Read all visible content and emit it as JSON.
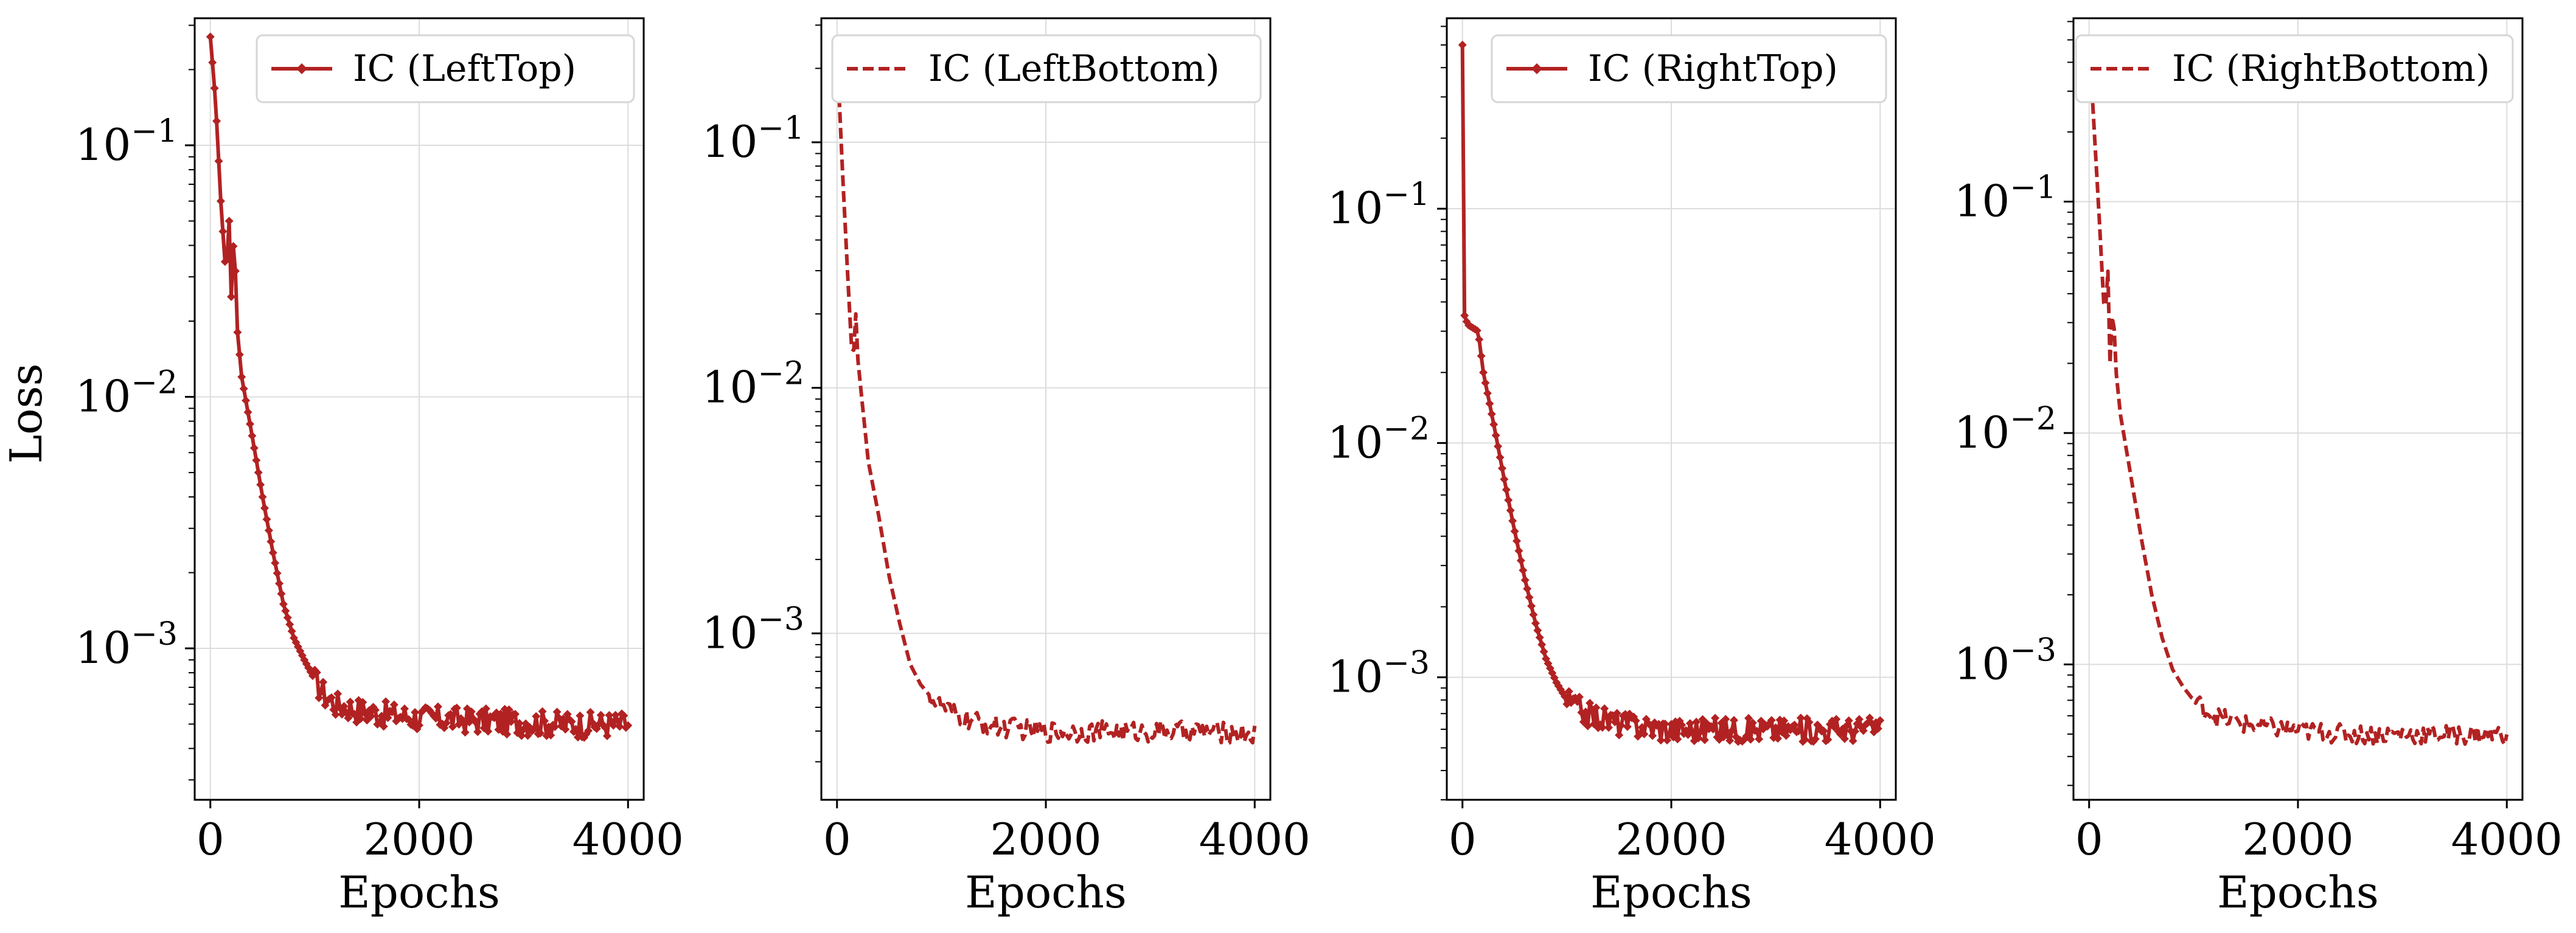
{
  "figure": {
    "ylabel": "Loss",
    "color": "#b22222"
  },
  "chart_data": [
    {
      "type": "line",
      "legend": "IC (LeftTop)",
      "line_style": "solid",
      "marker": "diamond",
      "legend_position": "top-right",
      "xlabel": "Epochs",
      "ylabel": "Loss",
      "yscale": "log",
      "grid": true,
      "xlim": [
        -150,
        4150
      ],
      "ylim": [
        0.00025,
        0.32
      ],
      "xticks": [
        0,
        2000,
        4000
      ],
      "yticks": [
        {
          "value": 0.1,
          "base": "10",
          "exp": "−1"
        },
        {
          "value": 0.01,
          "base": "10",
          "exp": "−2"
        },
        {
          "value": 0.001,
          "base": "10",
          "exp": "−3"
        }
      ],
      "x": [
        0,
        50,
        100,
        150,
        180,
        200,
        230,
        250,
        300,
        400,
        500,
        600,
        700,
        800,
        900,
        1000,
        1100,
        1200,
        1500,
        2000,
        2500,
        3000,
        3500,
        4000
      ],
      "y": [
        0.27,
        0.15,
        0.06,
        0.03,
        0.05,
        0.025,
        0.05,
        0.02,
        0.012,
        0.007,
        0.004,
        0.0024,
        0.0015,
        0.0011,
        0.0009,
        0.00075,
        0.00065,
        0.0006,
        0.00056,
        0.00053,
        0.00052,
        0.00051,
        0.0005,
        0.0005
      ],
      "noise_from_epoch": 1000,
      "noise": 0.12
    },
    {
      "type": "line",
      "legend": "IC (LeftBottom)",
      "line_style": "dashed",
      "marker": "none",
      "legend_position": "top-right",
      "xlabel": "Epochs",
      "ylabel": "",
      "yscale": "log",
      "grid": true,
      "xlim": [
        -150,
        4150
      ],
      "ylim": [
        0.00021,
        0.32
      ],
      "xticks": [
        0,
        2000,
        4000
      ],
      "yticks": [
        {
          "value": 0.1,
          "base": "10",
          "exp": "−1"
        },
        {
          "value": 0.01,
          "base": "10",
          "exp": "−2"
        },
        {
          "value": 0.001,
          "base": "10",
          "exp": "−3"
        }
      ],
      "x": [
        0,
        50,
        100,
        150,
        180,
        200,
        250,
        300,
        400,
        500,
        600,
        700,
        800,
        900,
        1000,
        1200,
        1500,
        2000,
        2500,
        3000,
        3500,
        4000
      ],
      "y": [
        0.24,
        0.08,
        0.03,
        0.012,
        0.02,
        0.013,
        0.008,
        0.005,
        0.003,
        0.0017,
        0.0011,
        0.00075,
        0.00062,
        0.00055,
        0.0005,
        0.00045,
        0.00042,
        0.0004,
        0.0004,
        0.0004,
        0.0004,
        0.00039
      ],
      "noise_from_epoch": 900,
      "noise": 0.1
    },
    {
      "type": "line",
      "legend": "IC (RightTop)",
      "line_style": "solid",
      "marker": "diamond",
      "legend_position": "top-right",
      "xlabel": "Epochs",
      "ylabel": "",
      "yscale": "log",
      "grid": true,
      "xlim": [
        -150,
        4150
      ],
      "ylim": [
        0.0003,
        0.65
      ],
      "xticks": [
        0,
        2000,
        4000
      ],
      "yticks": [
        {
          "value": 0.1,
          "base": "10",
          "exp": "−1"
        },
        {
          "value": 0.01,
          "base": "10",
          "exp": "−2"
        },
        {
          "value": 0.001,
          "base": "10",
          "exp": "−3"
        }
      ],
      "x": [
        0,
        20,
        50,
        100,
        150,
        200,
        300,
        400,
        500,
        600,
        700,
        800,
        900,
        1000,
        1200,
        1500,
        2000,
        2500,
        3000,
        3500,
        4000
      ],
      "y": [
        0.5,
        0.035,
        0.032,
        0.031,
        0.03,
        0.02,
        0.012,
        0.007,
        0.0042,
        0.0026,
        0.0017,
        0.0012,
        0.00095,
        0.0008,
        0.0007,
        0.00064,
        0.0006,
        0.0006,
        0.0006,
        0.0006,
        0.00061
      ],
      "noise_from_epoch": 1000,
      "noise": 0.12
    },
    {
      "type": "line",
      "legend": "IC (RightBottom)",
      "line_style": "dashed",
      "marker": "none",
      "legend_position": "top-right",
      "xlabel": "Epochs",
      "ylabel": "",
      "yscale": "log",
      "grid": true,
      "xlim": [
        -150,
        4150
      ],
      "ylim": [
        0.00026,
        0.62
      ],
      "xticks": [
        0,
        2000,
        4000
      ],
      "yticks": [
        {
          "value": 0.1,
          "base": "10",
          "exp": "−1"
        },
        {
          "value": 0.01,
          "base": "10",
          "exp": "−2"
        },
        {
          "value": 0.001,
          "base": "10",
          "exp": "−3"
        }
      ],
      "x": [
        0,
        50,
        100,
        150,
        180,
        200,
        230,
        250,
        300,
        400,
        500,
        600,
        700,
        800,
        900,
        1000,
        1200,
        1500,
        2000,
        2500,
        3000,
        3500,
        4000
      ],
      "y": [
        0.5,
        0.2,
        0.08,
        0.03,
        0.05,
        0.02,
        0.04,
        0.02,
        0.012,
        0.0065,
        0.0035,
        0.002,
        0.0013,
        0.00095,
        0.0008,
        0.0007,
        0.0006,
        0.00055,
        0.00052,
        0.0005,
        0.0005,
        0.0005,
        0.0005
      ],
      "noise_from_epoch": 1000,
      "noise": 0.1
    }
  ]
}
